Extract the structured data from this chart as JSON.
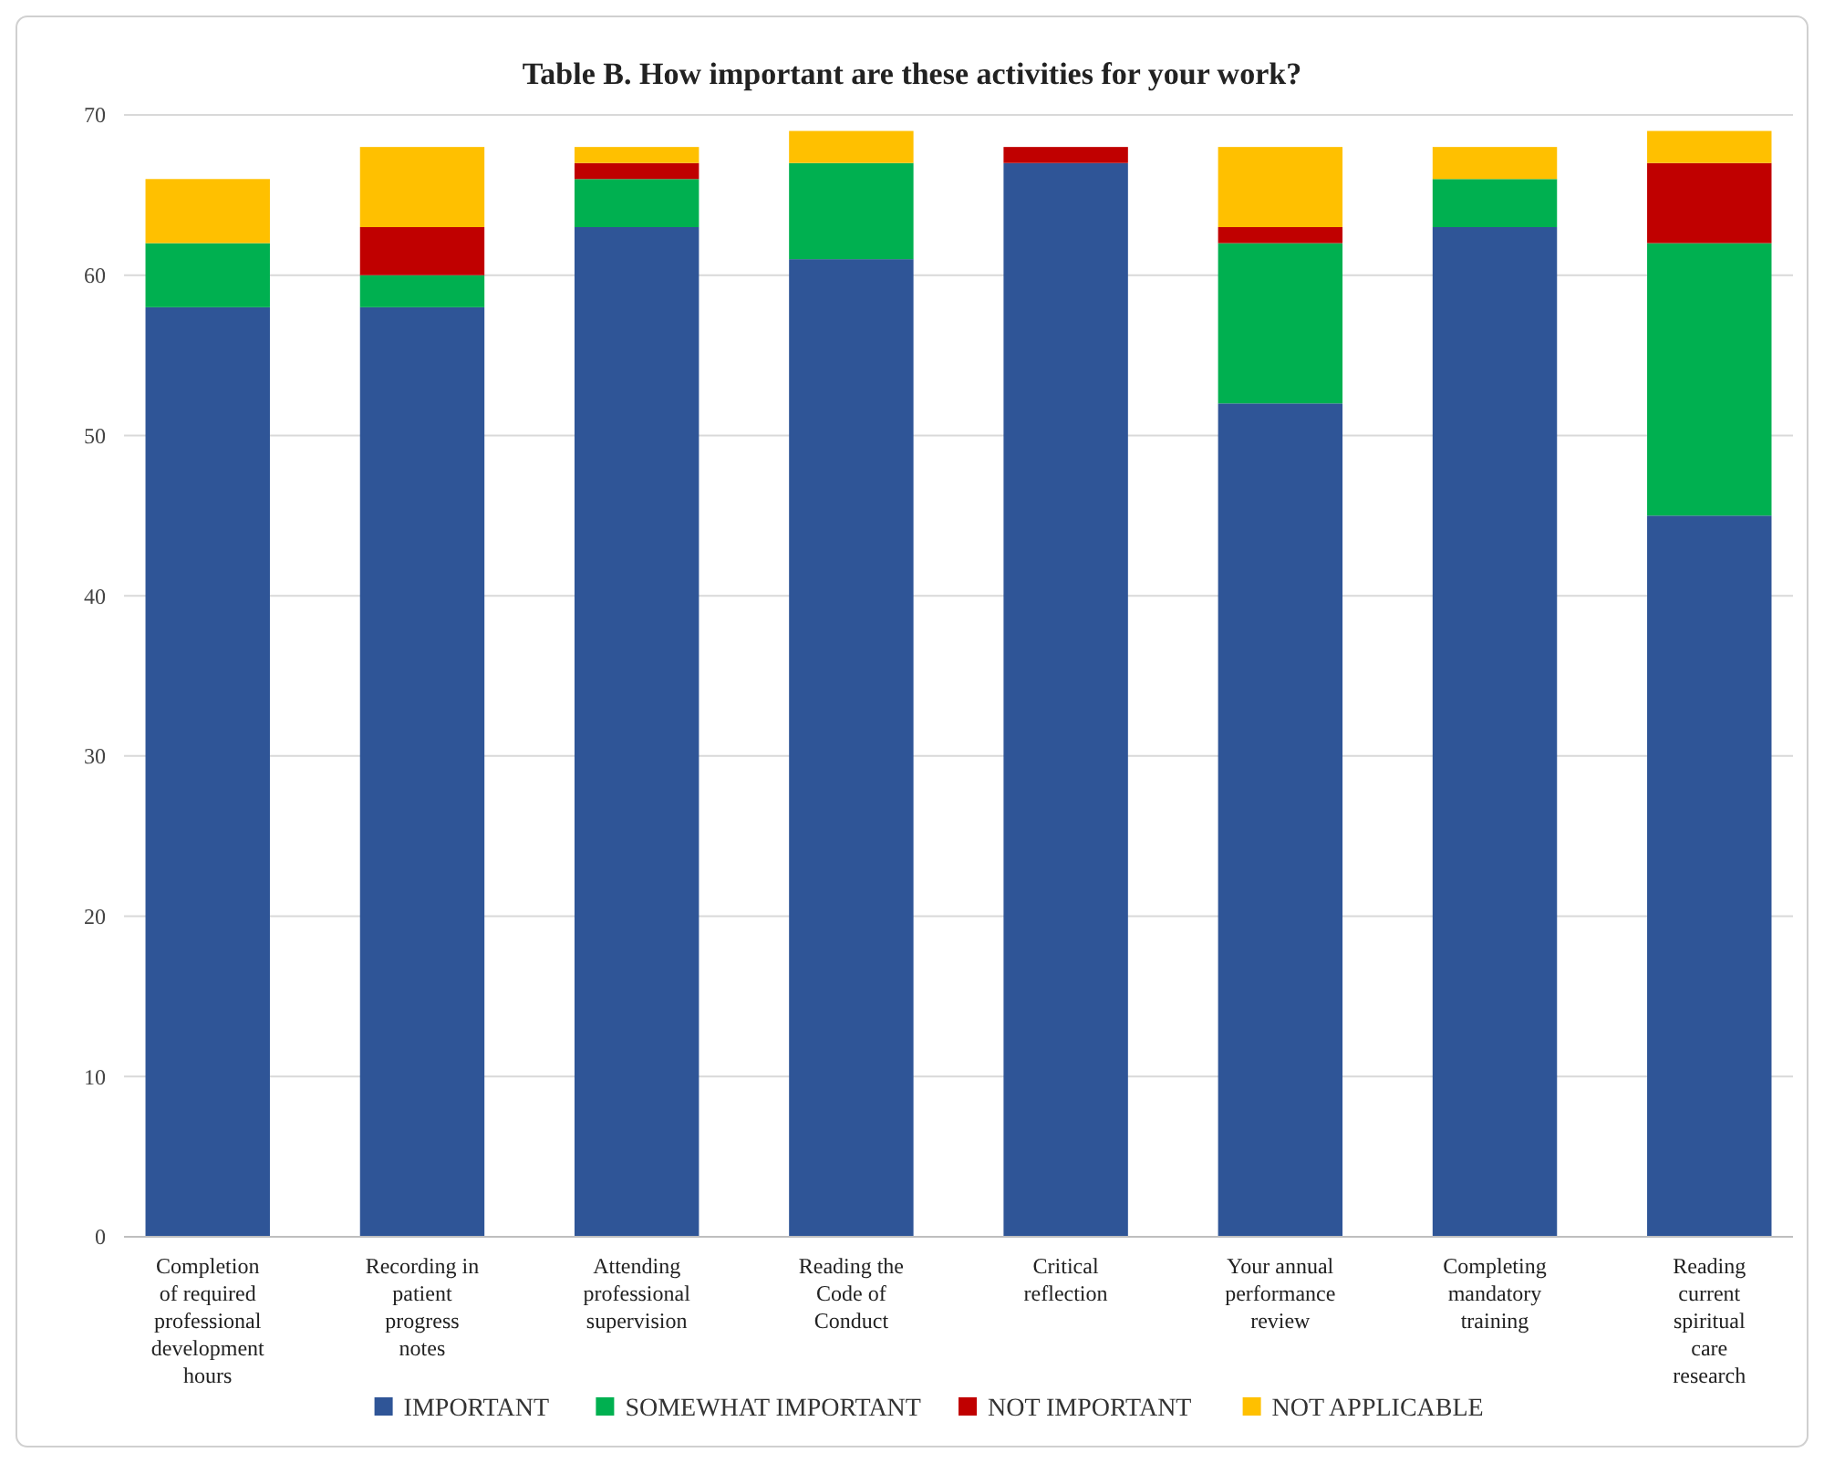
{
  "chart_data": {
    "type": "bar",
    "title": "Table B. How important are these activities for your work?",
    "stacked": true,
    "categories": [
      "Completion of required professional development hours",
      "Recording in patient progress notes",
      "Attending professional supervision",
      "Reading the Code of Conduct",
      "Critical reflection",
      "Your annual performance review",
      "Completing mandatory training",
      "Reading current spiritual care research"
    ],
    "series": [
      {
        "name": "IMPORTANT",
        "color": "#2f5597",
        "values": [
          58,
          58,
          63,
          61,
          67,
          52,
          63,
          45
        ]
      },
      {
        "name": "SOMEWHAT IMPORTANT",
        "color": "#00b050",
        "values": [
          4,
          2,
          3,
          6,
          0,
          10,
          3,
          17
        ]
      },
      {
        "name": "NOT IMPORTANT",
        "color": "#c00000",
        "values": [
          0,
          3,
          1,
          0,
          1,
          1,
          0,
          5
        ]
      },
      {
        "name": "NOT APPLICABLE",
        "color": "#ffc000",
        "values": [
          4,
          5,
          1,
          2,
          0,
          5,
          2,
          2
        ]
      }
    ],
    "ylim": [
      0,
      70
    ],
    "yticks": [
      0,
      10,
      20,
      30,
      40,
      50,
      60,
      70
    ],
    "grid": "y",
    "legend": "bottom"
  }
}
